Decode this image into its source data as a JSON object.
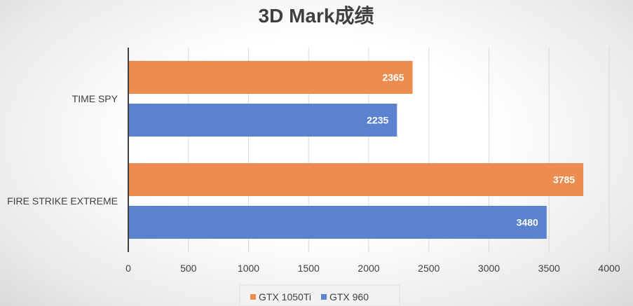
{
  "chart_data": {
    "type": "bar",
    "orientation": "horizontal",
    "title": "3D Mark成绩",
    "categories": [
      "TIME SPY",
      "FIRE STRIKE EXTREME"
    ],
    "series": [
      {
        "name": "GTX 1050Ti",
        "color": "#ED8C4F",
        "values": [
          2365,
          3785
        ]
      },
      {
        "name": "GTX 960",
        "color": "#5B82CF",
        "values": [
          2235,
          3480
        ]
      }
    ],
    "xlim": [
      0,
      4000
    ],
    "xticks": [
      0,
      500,
      1000,
      1500,
      2000,
      2500,
      3000,
      3500,
      4000
    ],
    "grid": true,
    "data_labels": true,
    "legend": "bottom"
  }
}
